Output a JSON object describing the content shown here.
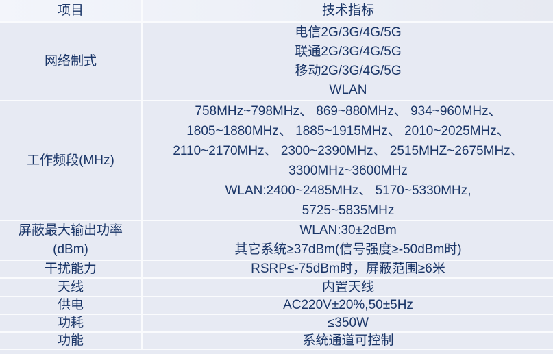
{
  "colors": {
    "text": "#1b3668",
    "row_background": "#e7eaf3",
    "header_background": "#f0f2f9",
    "gridline": "#fafbfd"
  },
  "table": {
    "header": {
      "item": "项目",
      "spec": "技术指标"
    },
    "rows": [
      {
        "item": "网络制式",
        "spec_lines": [
          "电信2G/3G/4G/5G",
          "联通2G/3G/4G/5G",
          "移动2G/3G/4G/5G",
          "WLAN"
        ]
      },
      {
        "item": "工作频段(MHz)",
        "spec_lines": [
          "758MHz~798MHz、 869~880MHz、 934~960MHz、",
          "1805~1880MHz、 1885~1915MHz、 2010~2025MHz、",
          "2110~2170MHz、 2300~2390MHz、 2515MHZ~2675MHz、",
          "3300MHz~3600MHz",
          "WLAN:2400~2485MHz、 5170~5330MHz,",
          "5725~5835MHz"
        ]
      },
      {
        "item_lines": [
          "屏蔽最大输出功率",
          "(dBm)"
        ],
        "spec_lines": [
          "WLAN:30±2dBm",
          "其它系统≥37dBm(信号强度≥-50dBm时)"
        ]
      },
      {
        "item": "干扰能力",
        "spec_lines": [
          "RSRP≤-75dBm时，屏蔽范围≥6米"
        ]
      },
      {
        "item": "天线",
        "spec_lines": [
          "内置天线"
        ]
      },
      {
        "item": "供电",
        "spec_lines": [
          "AC220V±20%,50±5Hz"
        ]
      },
      {
        "item": "功耗",
        "spec_lines": [
          "≤350W"
        ]
      },
      {
        "item": "功能",
        "spec_lines": [
          "系统通道可控制"
        ]
      }
    ]
  }
}
